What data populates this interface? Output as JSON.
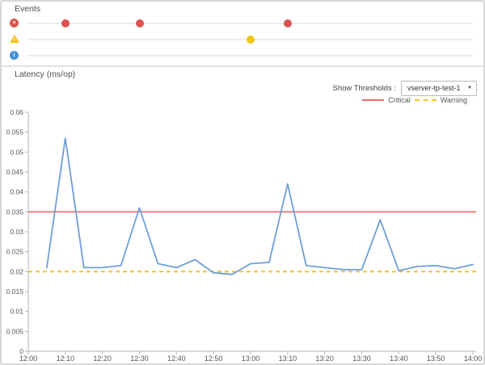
{
  "events_panel": {
    "title": "Events",
    "rows": [
      {
        "id": "error",
        "icon": "error-circle-x-icon",
        "color": "#d9534f",
        "events": [
          "12:10",
          "12:30",
          "13:10"
        ]
      },
      {
        "id": "warning",
        "icon": "warning-triangle-icon",
        "color": "#f0c419",
        "events": [
          "13:00"
        ]
      },
      {
        "id": "info",
        "icon": "info-circle-icon",
        "color": "#4a90d9",
        "events": []
      }
    ]
  },
  "latency_panel": {
    "title": "Latency (ms/op)",
    "show_thresholds_label": "Show Thresholds :",
    "thresholds_select": {
      "selected": "vserver-tp-test-1"
    },
    "legend": [
      {
        "label": "Critical",
        "color": "#e46a6a",
        "style": "solid"
      },
      {
        "label": "Warning",
        "color": "#f2c12e",
        "style": "dashed"
      }
    ]
  },
  "chart_data": {
    "type": "line",
    "title": "Latency (ms/op)",
    "x": [
      "12:05",
      "12:10",
      "12:15",
      "12:20",
      "12:25",
      "12:30",
      "12:35",
      "12:40",
      "12:45",
      "12:50",
      "12:55",
      "13:00",
      "13:05",
      "13:10",
      "13:15",
      "13:20",
      "13:25",
      "13:30",
      "13:35",
      "13:40",
      "13:45",
      "13:50",
      "13:55",
      "14:00"
    ],
    "series": [
      {
        "name": "Latency",
        "color": "#6f9fd6",
        "values": [
          0.021,
          0.0535,
          0.021,
          0.021,
          0.0215,
          0.036,
          0.022,
          0.021,
          0.023,
          0.0197,
          0.0193,
          0.022,
          0.0223,
          0.042,
          0.0215,
          0.021,
          0.0205,
          0.0205,
          0.033,
          0.0202,
          0.0213,
          0.0215,
          0.0207,
          0.0218
        ]
      }
    ],
    "thresholds": [
      {
        "name": "Critical",
        "value": 0.035,
        "color": "#e46a6a",
        "style": "solid"
      },
      {
        "name": "Warning",
        "value": 0.02,
        "color": "#f2c12e",
        "style": "dashed"
      }
    ],
    "xticks": [
      "12:00",
      "12:10",
      "12:20",
      "12:30",
      "12:40",
      "12:50",
      "13:00",
      "13:10",
      "13:20",
      "13:30",
      "13:40",
      "13:50",
      "14:00"
    ],
    "yticks": [
      0,
      0.005,
      0.01,
      0.015,
      0.02,
      0.025,
      0.03,
      0.035,
      0.04,
      0.045,
      0.05,
      0.055,
      0.06
    ],
    "ylim": [
      0,
      0.06
    ],
    "xlim": [
      "12:00",
      "14:00"
    ],
    "grid": false,
    "legend_position": "top-right"
  }
}
